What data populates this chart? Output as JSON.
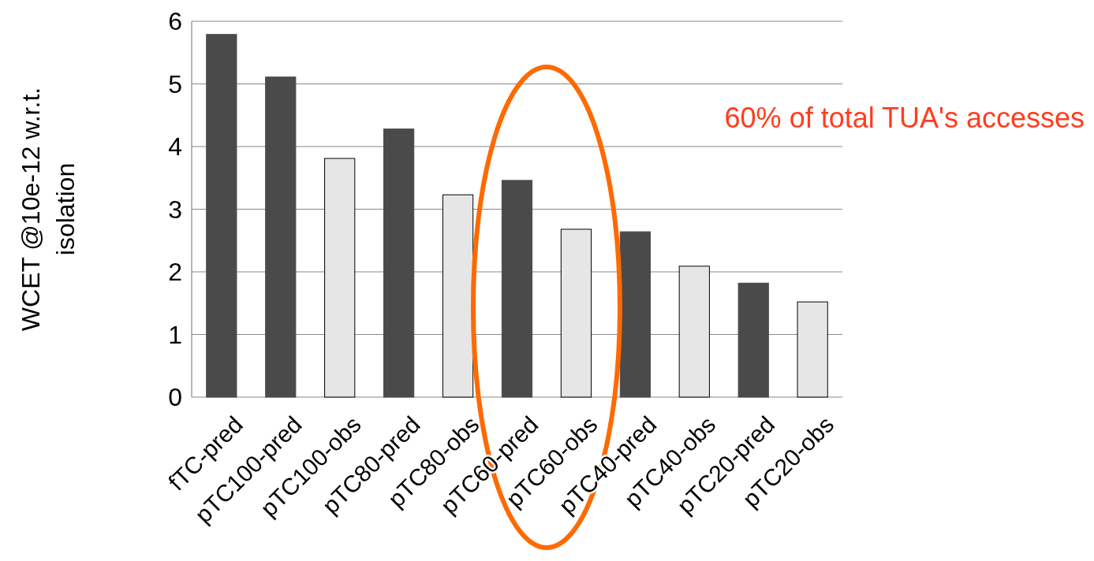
{
  "chart_data": {
    "type": "bar",
    "ylabel": "WCET @10e-12 w.r.t. isolation",
    "categories": [
      "fTC-pred",
      "pTC100-pred",
      "pTC100-obs",
      "pTC80-pred",
      "pTC80-obs",
      "pTC60-pred",
      "pTC60-obs",
      "pTC40-pred",
      "pTC40-obs",
      "pTC20-pred",
      "pTC20-obs"
    ],
    "values": [
      5.79,
      5.11,
      3.81,
      4.28,
      3.23,
      3.46,
      2.68,
      2.64,
      2.09,
      1.82,
      1.52
    ],
    "colors": [
      "#4a4a4a",
      "#4a4a4a",
      "#e6e6e6",
      "#4a4a4a",
      "#e6e6e6",
      "#4a4a4a",
      "#e6e6e6",
      "#4a4a4a",
      "#e6e6e6",
      "#4a4a4a",
      "#e6e6e6"
    ],
    "ylim": [
      0,
      6
    ],
    "yticks": [
      0,
      1,
      2,
      3,
      4,
      5,
      6
    ],
    "grid": "y",
    "annotations": [
      "60% of total TUA's accesses"
    ]
  }
}
